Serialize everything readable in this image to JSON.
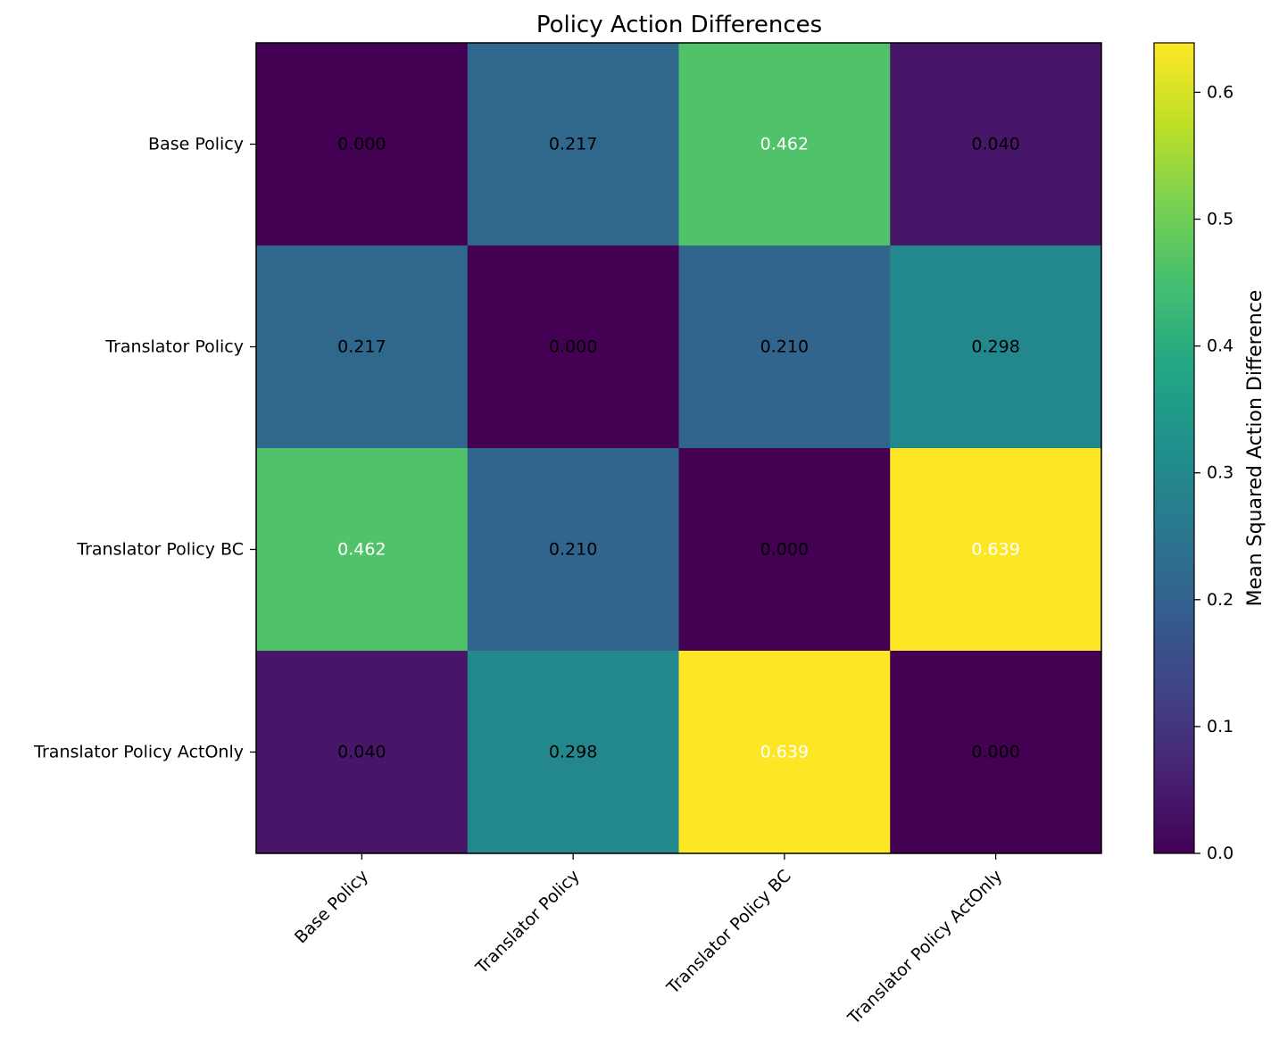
{
  "chart_data": {
    "type": "heatmap",
    "title": "Policy Action Differences",
    "x_categories": [
      "Base Policy",
      "Translator Policy",
      "Translator Policy BC",
      "Translator Policy ActOnly"
    ],
    "y_categories": [
      "Base Policy",
      "Translator Policy",
      "Translator Policy BC",
      "Translator Policy ActOnly"
    ],
    "values": [
      [
        0.0,
        0.217,
        0.462,
        0.04
      ],
      [
        0.217,
        0.0,
        0.21,
        0.298
      ],
      [
        0.462,
        0.21,
        0.0,
        0.639
      ],
      [
        0.04,
        0.298,
        0.639,
        0.0
      ]
    ],
    "value_labels": [
      [
        "0.000",
        "0.217",
        "0.462",
        "0.040"
      ],
      [
        "0.217",
        "0.000",
        "0.210",
        "0.298"
      ],
      [
        "0.462",
        "0.210",
        "0.000",
        "0.639"
      ],
      [
        "0.040",
        "0.298",
        "0.639",
        "0.000"
      ]
    ],
    "colormap": "viridis",
    "colorbar": {
      "label": "Mean Squared Action Difference",
      "range": [
        0,
        0.639
      ],
      "ticks": [
        "0.0",
        "0.1",
        "0.2",
        "0.3",
        "0.4",
        "0.5",
        "0.6"
      ]
    },
    "grid": false
  }
}
